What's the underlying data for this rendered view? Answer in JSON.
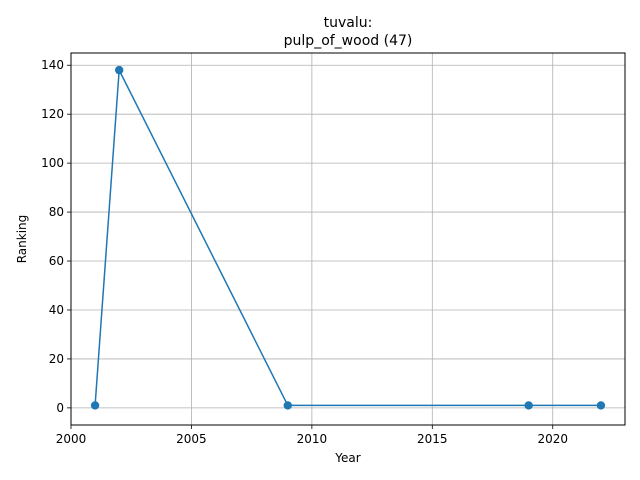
{
  "chart_data": {
    "type": "line",
    "title_lines": [
      "tuvalu:",
      "pulp_of_wood (47)"
    ],
    "xlabel": "Year",
    "ylabel": "Ranking",
    "xlim": [
      2000,
      2023
    ],
    "ylim": [
      -7,
      145
    ],
    "xticks": [
      2000,
      2005,
      2010,
      2015,
      2020
    ],
    "yticks": [
      0,
      20,
      40,
      60,
      80,
      100,
      120,
      140
    ],
    "grid": true,
    "series": [
      {
        "x": [
          2001,
          2002,
          2009,
          2019,
          2022
        ],
        "y": [
          1,
          138,
          1,
          1,
          1
        ],
        "color": "#1f77b4",
        "marker": "circle"
      }
    ]
  }
}
